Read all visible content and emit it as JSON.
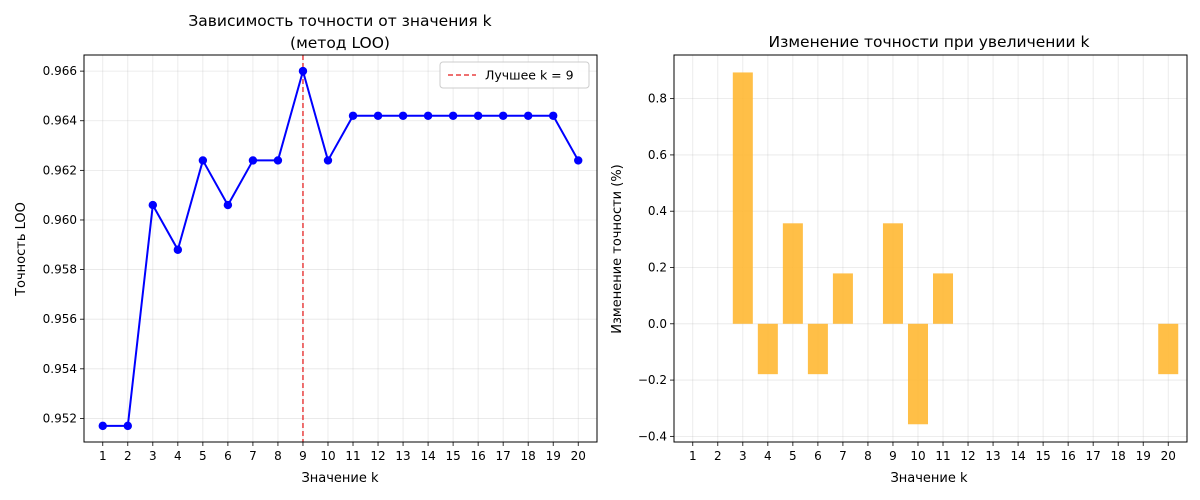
{
  "chart_data": [
    {
      "type": "line",
      "title_lines": [
        "Зависимость точности от значения k",
        "(метод LOO)"
      ],
      "xlabel": "Значение k",
      "ylabel": "Точность LOO",
      "x": [
        1,
        2,
        3,
        4,
        5,
        6,
        7,
        8,
        9,
        10,
        11,
        12,
        13,
        14,
        15,
        16,
        17,
        18,
        19,
        20
      ],
      "series": [
        {
          "name": "accuracy",
          "values": [
            0.9517,
            0.9517,
            0.9606,
            0.9588,
            0.9624,
            0.9606,
            0.9624,
            0.9624,
            0.966,
            0.9624,
            0.9642,
            0.9642,
            0.9642,
            0.9642,
            0.9642,
            0.9642,
            0.9642,
            0.9642,
            0.9642,
            0.9624
          ]
        }
      ],
      "xlim": [
        0.25,
        20.75
      ],
      "ylim": [
        0.95105,
        0.96665
      ],
      "yticks": [
        0.952,
        0.954,
        0.956,
        0.958,
        0.96,
        0.962,
        0.964,
        0.966
      ],
      "ytick_labels": [
        "0.952",
        "0.954",
        "0.956",
        "0.958",
        "0.960",
        "0.962",
        "0.964",
        "0.966"
      ],
      "xtick_labels": [
        "1",
        "2",
        "3",
        "4",
        "5",
        "6",
        "7",
        "8",
        "9",
        "10",
        "11",
        "12",
        "13",
        "14",
        "15",
        "16",
        "17",
        "18",
        "19",
        "20"
      ],
      "best_k": 9,
      "legend": {
        "label": "Лучшее k = 9",
        "position": "top-right"
      },
      "grid": true,
      "colors": {
        "line": "#0000ff",
        "best": "#e84040"
      }
    },
    {
      "type": "bar",
      "title": "Изменение точности при увеличении k",
      "xlabel": "Значение k",
      "ylabel": "Изменение точности (%)",
      "categories": [
        3,
        4,
        5,
        6,
        7,
        8,
        9,
        10,
        11,
        12,
        13,
        14,
        15,
        16,
        17,
        18,
        19,
        20
      ],
      "values": [
        0.893,
        -0.179,
        0.357,
        -0.179,
        0.179,
        0.0,
        0.357,
        -0.357,
        0.179,
        0.0,
        0.0,
        0.0,
        0.0,
        0.0,
        0.0,
        0.0,
        0.0,
        -0.179
      ],
      "xlim": [
        0.25,
        20.75
      ],
      "ylim": [
        -0.42,
        0.955
      ],
      "yticks": [
        -0.4,
        -0.2,
        0.0,
        0.2,
        0.4,
        0.6,
        0.8
      ],
      "ytick_labels": [
        "−0.4",
        "−0.2",
        "0.0",
        "0.2",
        "0.4",
        "0.6",
        "0.8"
      ],
      "xticks": [
        1,
        2,
        3,
        4,
        5,
        6,
        7,
        8,
        9,
        10,
        11,
        12,
        13,
        14,
        15,
        16,
        17,
        18,
        19,
        20
      ],
      "xtick_labels": [
        "1",
        "2",
        "3",
        "4",
        "5",
        "6",
        "7",
        "8",
        "9",
        "10",
        "11",
        "12",
        "13",
        "14",
        "15",
        "16",
        "17",
        "18",
        "19",
        "20"
      ],
      "grid": true,
      "colors": {
        "bar": "#ffb833"
      }
    }
  ]
}
